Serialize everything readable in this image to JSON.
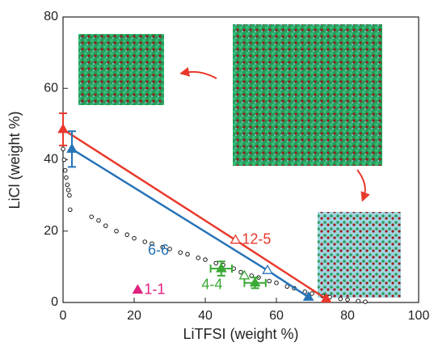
{
  "chart_data": {
    "type": "scatter",
    "x_label": "LiTFSI (weight %)",
    "y_label": "LiCl (weight %)",
    "xlim": [
      0,
      100
    ],
    "xticks": [
      0,
      20,
      40,
      60,
      80,
      100
    ],
    "ylim": [
      0,
      80
    ],
    "yticks": [
      0,
      20,
      40,
      60,
      80
    ],
    "series": [
      {
        "color": "#000000",
        "marker": "circle",
        "x": [
          0,
          0.3,
          0.6,
          0.9,
          1.2,
          1.5,
          1.8,
          2.0,
          8,
          10,
          12,
          15,
          18,
          20,
          23,
          25,
          28,
          30,
          33,
          35,
          38,
          40,
          43,
          45,
          48,
          50,
          53,
          55,
          58,
          60,
          63,
          65,
          68,
          70,
          73,
          75,
          78,
          80,
          83,
          85
        ],
        "y": [
          43,
          40,
          37,
          35,
          33,
          31.5,
          30,
          26,
          24,
          23,
          21.5,
          20,
          19,
          18,
          17,
          16.5,
          15.5,
          15,
          14,
          13.5,
          12.5,
          12,
          11,
          10.5,
          9.5,
          8.5,
          7.5,
          7,
          6,
          5.5,
          4.5,
          4,
          3,
          2.5,
          1.8,
          1.5,
          1,
          0.8,
          0.4,
          0.2
        ]
      },
      {
        "name": "12-5",
        "color": "#e8392c",
        "marker": "triangle",
        "line": true,
        "x": [
          0,
          48.5,
          74
        ],
        "y": [
          48.5,
          17.5,
          1
        ],
        "filled": [
          true,
          false,
          true
        ],
        "y_err": [
          4.5,
          null,
          null
        ]
      },
      {
        "name": "6-6",
        "color": "#2673b8",
        "marker": "triangle",
        "line": true,
        "x": [
          2.5,
          57.5,
          69
        ],
        "y": [
          43,
          9,
          1.5
        ],
        "filled": [
          true,
          false,
          true
        ],
        "y_err": [
          5,
          null,
          null
        ]
      },
      {
        "name": "4-4",
        "color": "#3aa935",
        "marker": "triangle",
        "x": [
          44.5,
          51,
          54
        ],
        "y": [
          9.5,
          7.5,
          5.5
        ],
        "filled": [
          true,
          false,
          true
        ],
        "x_err": [
          3,
          null,
          3
        ],
        "y_err": [
          2,
          null,
          1.5
        ]
      },
      {
        "name": "1-1",
        "color": "#e0207f",
        "marker": "triangle",
        "x": [
          21
        ],
        "y": [
          3.5
        ],
        "filled": [
          true
        ]
      }
    ]
  }
}
